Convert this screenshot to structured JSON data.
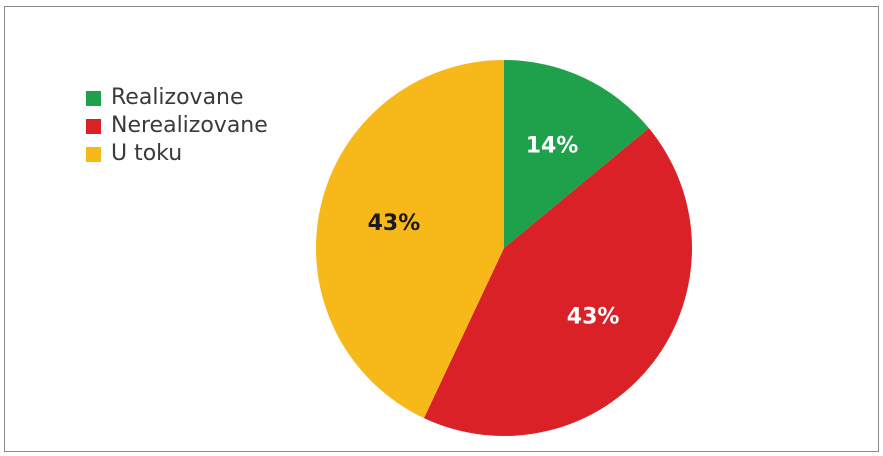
{
  "chart_data": {
    "type": "pie",
    "title": "",
    "legend_position": "top-left",
    "slices": [
      {
        "name": "Realizovane",
        "value": 14,
        "label": "14%",
        "color": "#1fa04a",
        "label_color": "#ffffff"
      },
      {
        "name": "Nerealizovane",
        "value": 43,
        "label": "43%",
        "color": "#da2128",
        "label_color": "#ffffff"
      },
      {
        "name": "U toku",
        "value": 43,
        "label": "43%",
        "color": "#f7b81a",
        "label_color": "#1a1a1a"
      }
    ]
  },
  "legend": {
    "items": [
      {
        "label": "Realizovane",
        "color": "#1fa04a"
      },
      {
        "label": "Nerealizovane",
        "color": "#da2128"
      },
      {
        "label": "U toku",
        "color": "#f7b81a"
      }
    ]
  }
}
